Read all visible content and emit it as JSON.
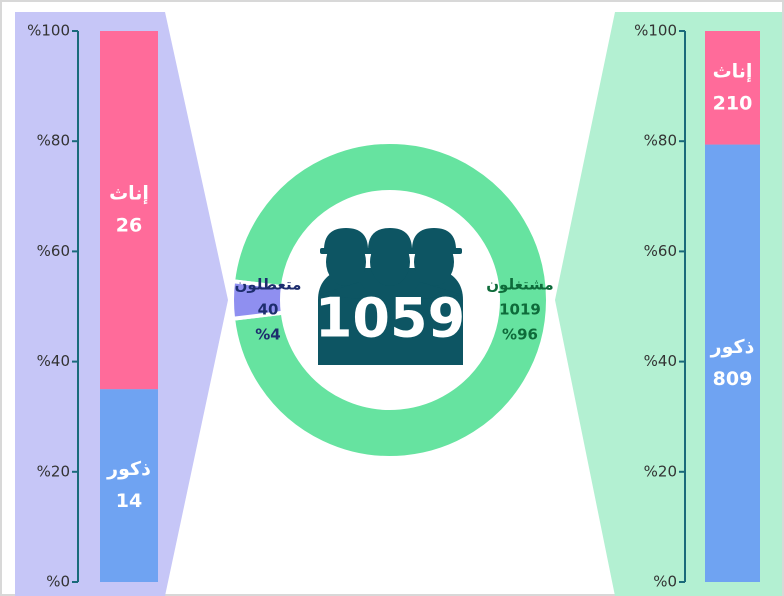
{
  "chart_data": [
    {
      "type": "donut",
      "total": 1059,
      "categories": [
        "مشتغلون",
        "متعطلون"
      ],
      "values": [
        1019,
        40
      ],
      "percents": [
        96,
        4
      ],
      "percent_labels": [
        "%96",
        "%4"
      ],
      "colors": [
        "#66e3a0",
        "#8f8ff0"
      ]
    },
    {
      "type": "bar",
      "stacked": "percent",
      "series": [
        {
          "name": "ذكور",
          "color": "#6fa3f2",
          "values": [
            14
          ]
        },
        {
          "name": "إناث",
          "color": "#ff6b9a",
          "values": [
            26
          ]
        }
      ],
      "ylim": [
        0,
        100
      ],
      "yticks": [
        {
          "value": 0,
          "label": "%0"
        },
        {
          "value": 20,
          "label": "%20"
        },
        {
          "value": 40,
          "label": "%40"
        },
        {
          "value": 60,
          "label": "%60"
        },
        {
          "value": 80,
          "label": "%80"
        },
        {
          "value": 100,
          "label": "%100"
        }
      ]
    },
    {
      "type": "bar",
      "stacked": "percent",
      "series": [
        {
          "name": "ذكور",
          "color": "#6fa3f2",
          "values": [
            809
          ]
        },
        {
          "name": "إناث",
          "color": "#ff6b9a",
          "values": [
            210
          ]
        }
      ],
      "ylim": [
        0,
        100
      ],
      "yticks": [
        {
          "value": 0,
          "label": "%0"
        },
        {
          "value": 20,
          "label": "%20"
        },
        {
          "value": 40,
          "label": "%40"
        },
        {
          "value": 60,
          "label": "%60"
        },
        {
          "value": 80,
          "label": "%80"
        },
        {
          "value": 100,
          "label": "%100"
        }
      ]
    }
  ]
}
